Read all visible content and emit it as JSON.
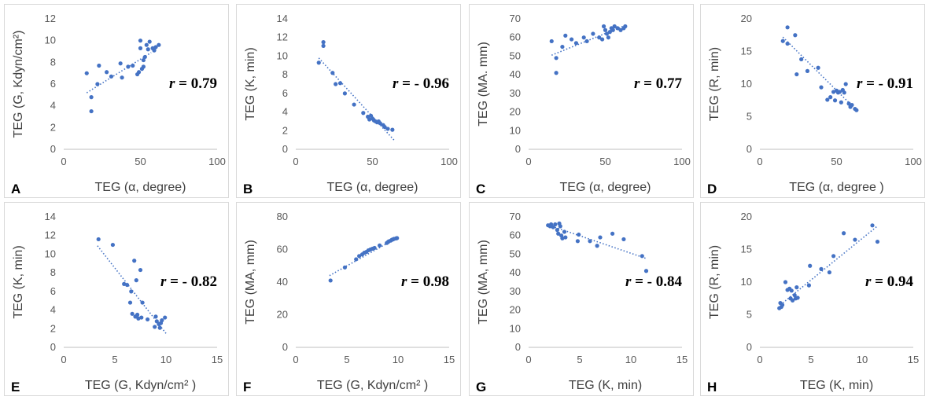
{
  "style": {
    "point_color": "#4472c4",
    "trend_color": "#4472c4",
    "axis_color": "#bfbfbf",
    "text_color": "#404040"
  },
  "chart_data": [
    {
      "panel": "A",
      "type": "scatter",
      "xlabel": "TEG (α, degree)",
      "ylabel": "TEG (G, Kdyn/cm²)",
      "xlim": [
        0,
        100
      ],
      "ylim": [
        0,
        12
      ],
      "xticks": [
        0,
        50,
        100
      ],
      "yticks": [
        0,
        2,
        4,
        6,
        8,
        10,
        12
      ],
      "annotation": "r = 0.79",
      "trendline": [
        [
          15,
          5.2
        ],
        [
          57,
          8.9
        ]
      ],
      "points": [
        [
          15,
          7.0
        ],
        [
          18,
          4.8
        ],
        [
          18,
          3.5
        ],
        [
          22,
          6.0
        ],
        [
          23,
          7.7
        ],
        [
          28,
          7.1
        ],
        [
          31,
          6.7
        ],
        [
          37,
          7.9
        ],
        [
          38,
          6.6
        ],
        [
          42,
          7.6
        ],
        [
          45,
          7.7
        ],
        [
          48,
          6.9
        ],
        [
          49,
          7.1
        ],
        [
          50,
          10.0
        ],
        [
          50,
          9.3
        ],
        [
          51,
          7.4
        ],
        [
          52,
          7.6
        ],
        [
          52,
          8.2
        ],
        [
          53,
          8.5
        ],
        [
          54,
          9.6
        ],
        [
          55,
          9.2
        ],
        [
          56,
          9.9
        ],
        [
          58,
          9.3
        ],
        [
          59,
          9.1
        ],
        [
          60,
          9.4
        ],
        [
          62,
          9.6
        ]
      ]
    },
    {
      "panel": "B",
      "type": "scatter",
      "xlabel": "TEG (α, degree)",
      "ylabel": "TEG (K, min)",
      "xlim": [
        0,
        100
      ],
      "ylim": [
        0,
        14
      ],
      "xticks": [
        0,
        50,
        100
      ],
      "yticks": [
        0,
        2,
        4,
        6,
        8,
        10,
        12,
        14
      ],
      "annotation": "r = - 0.96",
      "trendline": [
        [
          15,
          9.8
        ],
        [
          64,
          1.0
        ]
      ],
      "points": [
        [
          15,
          9.3
        ],
        [
          18,
          11.5
        ],
        [
          18,
          11.1
        ],
        [
          24,
          8.2
        ],
        [
          26,
          7.0
        ],
        [
          29,
          7.1
        ],
        [
          32,
          6.0
        ],
        [
          38,
          4.8
        ],
        [
          44,
          3.9
        ],
        [
          47,
          3.5
        ],
        [
          48,
          3.2
        ],
        [
          49,
          3.6
        ],
        [
          50,
          3.3
        ],
        [
          51,
          3.1
        ],
        [
          52,
          3.0
        ],
        [
          53,
          2.9
        ],
        [
          54,
          3.0
        ],
        [
          55,
          2.8
        ],
        [
          57,
          2.6
        ],
        [
          58,
          2.4
        ],
        [
          60,
          2.2
        ],
        [
          63,
          2.1
        ]
      ]
    },
    {
      "panel": "C",
      "type": "scatter",
      "xlabel": "TEG (α, degree)",
      "ylabel": "TEG (MA. mm)",
      "xlim": [
        0,
        100
      ],
      "ylim": [
        0,
        70
      ],
      "xticks": [
        0,
        50,
        100
      ],
      "yticks": [
        0,
        10,
        20,
        30,
        40,
        50,
        60,
        70
      ],
      "annotation": "r = 0.77",
      "trendline": [
        [
          15,
          50.5
        ],
        [
          63,
          66.5
        ]
      ],
      "points": [
        [
          15,
          58
        ],
        [
          18,
          49
        ],
        [
          18,
          41
        ],
        [
          22,
          55
        ],
        [
          24,
          61
        ],
        [
          28,
          59
        ],
        [
          31,
          57
        ],
        [
          36,
          60
        ],
        [
          38,
          58
        ],
        [
          42,
          62
        ],
        [
          46,
          60
        ],
        [
          48,
          59
        ],
        [
          49,
          66
        ],
        [
          50,
          64
        ],
        [
          51,
          62
        ],
        [
          52,
          60
        ],
        [
          53,
          63
        ],
        [
          54,
          65
        ],
        [
          55,
          64
        ],
        [
          56,
          66
        ],
        [
          58,
          65
        ],
        [
          60,
          64
        ],
        [
          62,
          65
        ],
        [
          63,
          66
        ]
      ]
    },
    {
      "panel": "D",
      "type": "scatter",
      "xlabel": "TEG (α, degree )",
      "ylabel": "TEG (R, min)",
      "xlim": [
        0,
        100
      ],
      "ylim": [
        0,
        20
      ],
      "xticks": [
        0,
        50,
        100
      ],
      "yticks": [
        0,
        5,
        10,
        15,
        20
      ],
      "annotation": "r = - 0.91",
      "trendline": [
        [
          15,
          17.2
        ],
        [
          63,
          6.0
        ]
      ],
      "points": [
        [
          15,
          16.6
        ],
        [
          18,
          18.7
        ],
        [
          18,
          16.2
        ],
        [
          23,
          17.5
        ],
        [
          24,
          11.5
        ],
        [
          27,
          13.8
        ],
        [
          31,
          12.0
        ],
        [
          38,
          12.5
        ],
        [
          40,
          9.5
        ],
        [
          44,
          7.6
        ],
        [
          46,
          8.0
        ],
        [
          48,
          8.8
        ],
        [
          49,
          7.5
        ],
        [
          50,
          9.0
        ],
        [
          51,
          8.7
        ],
        [
          52,
          8.8
        ],
        [
          53,
          7.2
        ],
        [
          54,
          9.1
        ],
        [
          55,
          8.7
        ],
        [
          56,
          10.0
        ],
        [
          58,
          7.0
        ],
        [
          59,
          6.5
        ],
        [
          60,
          6.8
        ],
        [
          62,
          6.2
        ],
        [
          63,
          6.0
        ]
      ]
    },
    {
      "panel": "E",
      "type": "scatter",
      "xlabel": "TEG (G, Kdyn/cm² )",
      "ylabel": "TEG (K, min)",
      "xlim": [
        0,
        15
      ],
      "ylim": [
        0,
        14
      ],
      "xticks": [
        0,
        5,
        10,
        15
      ],
      "yticks": [
        0,
        2,
        4,
        6,
        8,
        10,
        12,
        14
      ],
      "annotation": "r = - 0.82",
      "trendline": [
        [
          3.3,
          10.9
        ],
        [
          10,
          1.5
        ]
      ],
      "points": [
        [
          3.4,
          11.6
        ],
        [
          4.8,
          11.0
        ],
        [
          5.9,
          6.8
        ],
        [
          6.2,
          6.7
        ],
        [
          6.5,
          4.8
        ],
        [
          6.6,
          6.0
        ],
        [
          6.7,
          3.6
        ],
        [
          6.9,
          9.3
        ],
        [
          7.0,
          3.3
        ],
        [
          7.1,
          7.2
        ],
        [
          7.2,
          3.5
        ],
        [
          7.3,
          3.1
        ],
        [
          7.5,
          8.3
        ],
        [
          7.6,
          3.2
        ],
        [
          7.7,
          4.8
        ],
        [
          8.2,
          3.0
        ],
        [
          8.9,
          2.2
        ],
        [
          9.0,
          3.3
        ],
        [
          9.1,
          2.8
        ],
        [
          9.3,
          2.5
        ],
        [
          9.4,
          2.1
        ],
        [
          9.5,
          2.6
        ],
        [
          9.6,
          2.9
        ],
        [
          9.9,
          3.2
        ]
      ]
    },
    {
      "panel": "F",
      "type": "scatter",
      "xlabel": "TEG (G, Kdyn/cm² )",
      "ylabel": "TEG (MA, mm)",
      "xlim": [
        0,
        15
      ],
      "ylim": [
        0,
        80
      ],
      "xticks": [
        0,
        5,
        10,
        15
      ],
      "yticks": [
        0,
        20,
        40,
        60,
        80
      ],
      "annotation": "r = 0.98",
      "trendline": [
        [
          3.3,
          44
        ],
        [
          10,
          67.5
        ]
      ],
      "points": [
        [
          3.4,
          41
        ],
        [
          4.8,
          49
        ],
        [
          5.9,
          54
        ],
        [
          6.2,
          56
        ],
        [
          6.5,
          57
        ],
        [
          6.7,
          58
        ],
        [
          6.9,
          58.5
        ],
        [
          7.1,
          59.5
        ],
        [
          7.3,
          60
        ],
        [
          7.5,
          60.5
        ],
        [
          7.7,
          61
        ],
        [
          8.2,
          62.5
        ],
        [
          8.9,
          64
        ],
        [
          9.0,
          64.5
        ],
        [
          9.1,
          65
        ],
        [
          9.3,
          65.5
        ],
        [
          9.4,
          66
        ],
        [
          9.5,
          66.2
        ],
        [
          9.6,
          66.5
        ],
        [
          9.8,
          66.8
        ],
        [
          9.9,
          67
        ]
      ]
    },
    {
      "panel": "G",
      "type": "scatter",
      "xlabel": "TEG (K, min)",
      "ylabel": "TEG (MA, mm)",
      "xlim": [
        0,
        15
      ],
      "ylim": [
        0,
        70
      ],
      "xticks": [
        0,
        5,
        10,
        15
      ],
      "yticks": [
        0,
        10,
        20,
        30,
        40,
        50,
        60,
        70
      ],
      "annotation": "r = - 0.84",
      "trendline": [
        [
          2,
          65.5
        ],
        [
          11.6,
          47.5
        ]
      ],
      "points": [
        [
          1.9,
          65.5
        ],
        [
          2.1,
          65
        ],
        [
          2.2,
          66
        ],
        [
          2.4,
          64.5
        ],
        [
          2.6,
          66
        ],
        [
          2.8,
          63
        ],
        [
          2.9,
          61
        ],
        [
          3.0,
          66.5
        ],
        [
          3.1,
          65
        ],
        [
          3.2,
          60
        ],
        [
          3.3,
          58.5
        ],
        [
          3.5,
          62
        ],
        [
          3.6,
          59
        ],
        [
          4.8,
          57
        ],
        [
          4.9,
          60.5
        ],
        [
          6.0,
          57
        ],
        [
          6.7,
          54.5
        ],
        [
          7.0,
          59
        ],
        [
          8.2,
          61
        ],
        [
          9.3,
          58
        ],
        [
          11.1,
          49
        ],
        [
          11.5,
          41
        ]
      ]
    },
    {
      "panel": "H",
      "type": "scatter",
      "xlabel": "TEG (K, min)",
      "ylabel": "TEG (R, min)",
      "xlim": [
        0,
        15
      ],
      "ylim": [
        0,
        20
      ],
      "xticks": [
        0,
        5,
        10,
        15
      ],
      "yticks": [
        0,
        5,
        10,
        15,
        20
      ],
      "annotation": "r = 0.94",
      "trendline": [
        [
          2,
          6.5
        ],
        [
          11.5,
          18.6
        ]
      ],
      "points": [
        [
          1.9,
          6.0
        ],
        [
          2.0,
          6.8
        ],
        [
          2.1,
          6.2
        ],
        [
          2.2,
          6.5
        ],
        [
          2.5,
          10.0
        ],
        [
          2.7,
          8.8
        ],
        [
          2.9,
          9.0
        ],
        [
          3.0,
          7.5
        ],
        [
          3.1,
          8.7
        ],
        [
          3.2,
          7.2
        ],
        [
          3.4,
          8.0
        ],
        [
          3.5,
          7.5
        ],
        [
          3.6,
          9.2
        ],
        [
          3.7,
          7.6
        ],
        [
          4.8,
          9.5
        ],
        [
          4.9,
          12.5
        ],
        [
          6.0,
          12.0
        ],
        [
          6.8,
          11.5
        ],
        [
          7.2,
          14.0
        ],
        [
          8.2,
          17.5
        ],
        [
          9.3,
          16.5
        ],
        [
          11.0,
          18.7
        ],
        [
          11.5,
          16.2
        ]
      ]
    }
  ]
}
